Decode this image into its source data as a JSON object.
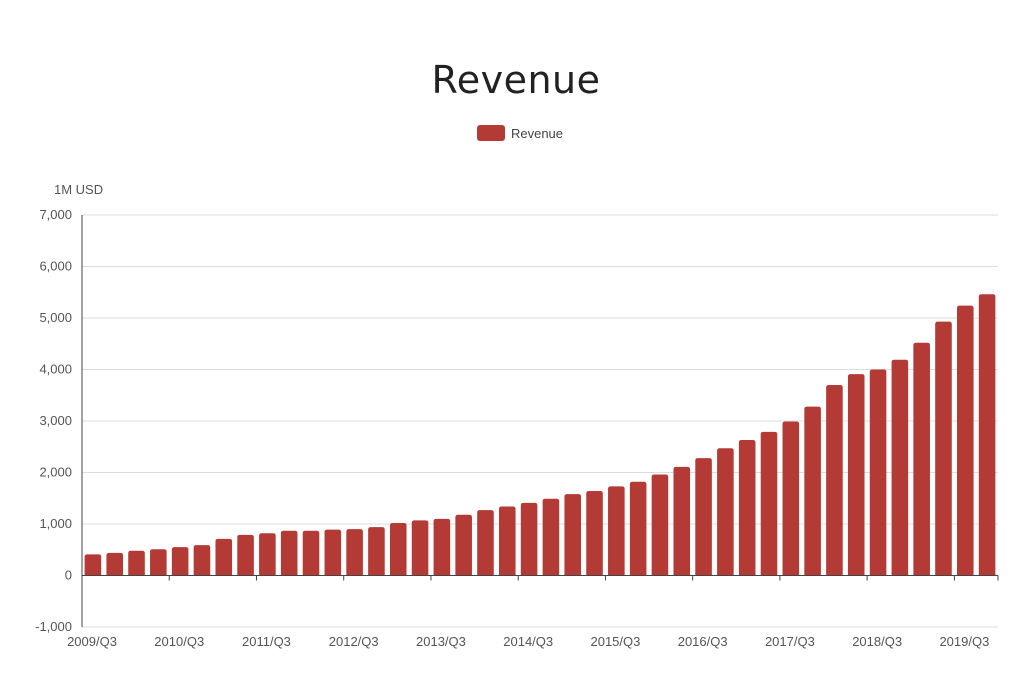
{
  "chart_data": {
    "type": "bar",
    "title": "Revenue",
    "xlabel": "",
    "ylabel": "1M USD",
    "ylim": [
      -1000,
      7000
    ],
    "yticks": [
      -1000,
      0,
      1000,
      2000,
      3000,
      4000,
      5000,
      6000,
      7000
    ],
    "grid": true,
    "legend_position": "top-center",
    "color": "#b43a36",
    "series": [
      {
        "name": "Revenue",
        "values": [
          410,
          440,
          480,
          510,
          550,
          590,
          710,
          790,
          820,
          870,
          870,
          890,
          900,
          940,
          1020,
          1070,
          1100,
          1180,
          1270,
          1340,
          1410,
          1490,
          1580,
          1640,
          1730,
          1820,
          1960,
          2110,
          2280,
          2470,
          2630,
          2790,
          2990,
          3280,
          3700,
          3910,
          4000,
          4190,
          4520,
          4930,
          5240,
          5460
        ]
      }
    ],
    "categories": [
      "2009/Q3",
      "2009/Q4",
      "2010/Q1",
      "2010/Q2",
      "2010/Q3",
      "2010/Q4",
      "2011/Q1",
      "2011/Q2",
      "2011/Q3",
      "2011/Q4",
      "2012/Q1",
      "2012/Q2",
      "2012/Q3",
      "2012/Q4",
      "2013/Q1",
      "2013/Q2",
      "2013/Q3",
      "2013/Q4",
      "2014/Q1",
      "2014/Q2",
      "2014/Q3",
      "2014/Q4",
      "2015/Q1",
      "2015/Q2",
      "2015/Q3",
      "2015/Q4",
      "2016/Q1",
      "2016/Q2",
      "2016/Q3",
      "2016/Q4",
      "2017/Q1",
      "2017/Q2",
      "2017/Q3",
      "2017/Q4",
      "2018/Q1",
      "2018/Q2",
      "2018/Q3",
      "2018/Q4",
      "2019/Q1",
      "2019/Q2",
      "2019/Q3",
      "2019/Q4"
    ],
    "xtick_labels": [
      "2009/Q3",
      "2010/Q3",
      "2011/Q3",
      "2012/Q3",
      "2013/Q3",
      "2014/Q3",
      "2015/Q3",
      "2016/Q3",
      "2017/Q3",
      "2018/Q3",
      "2019/Q3"
    ]
  }
}
